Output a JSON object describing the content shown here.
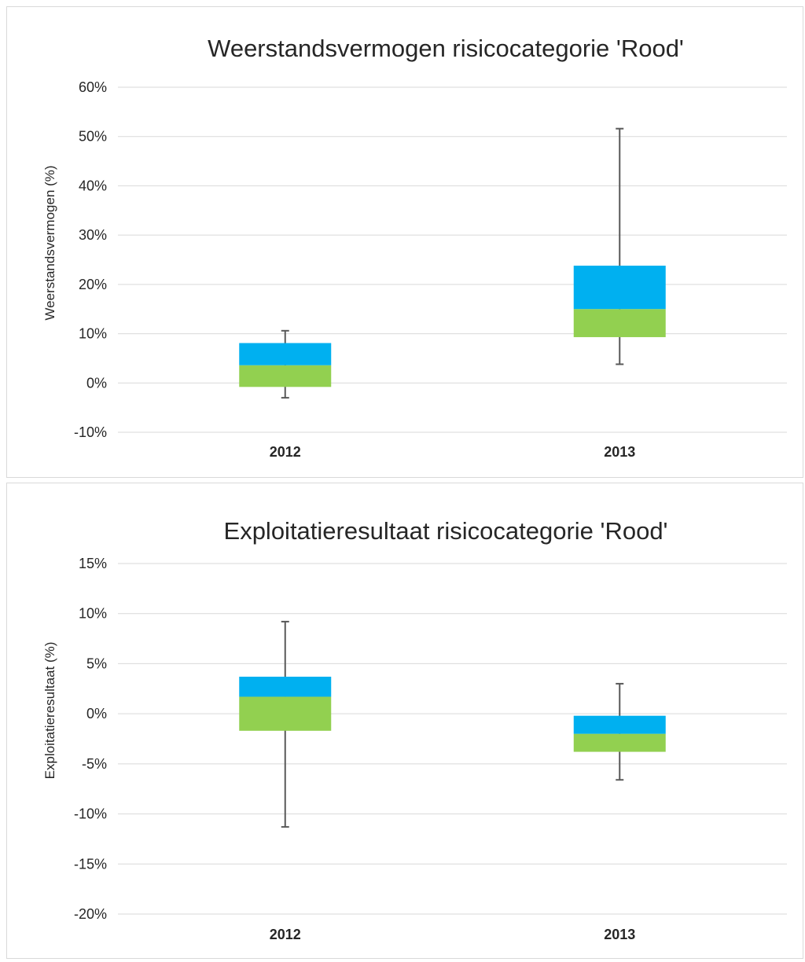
{
  "colors": {
    "upper_box": "#00b0f0",
    "lower_box": "#92d050",
    "whisker": "#595959",
    "grid": "#d9d9d9"
  },
  "chart_data": [
    {
      "type": "box",
      "title": "Weerstandsvermogen risicocategorie 'Rood'",
      "ylabel": "Weerstandsvermogen (%)",
      "xlabel": "",
      "categories": [
        "2012",
        "2013"
      ],
      "y_ticks": [
        "-10%",
        "0%",
        "10%",
        "20%",
        "30%",
        "40%",
        "50%",
        "60%"
      ],
      "ylim": [
        -10,
        60
      ],
      "unit": "%",
      "grid": true,
      "legend": "none",
      "boxes": [
        {
          "category": "2012",
          "min": -3,
          "q1": -0.8,
          "median": 3.6,
          "q3": 8.1,
          "max": 10.6
        },
        {
          "category": "2013",
          "min": 3.8,
          "q1": 9.3,
          "median": 15.0,
          "q3": 23.8,
          "max": 51.6
        }
      ]
    },
    {
      "type": "box",
      "title": "Exploitatieresultaat risicocategorie 'Rood'",
      "ylabel": "Exploitatieresultaat (%)",
      "xlabel": "",
      "categories": [
        "2012",
        "2013"
      ],
      "y_ticks": [
        "-20%",
        "-15%",
        "-10%",
        "-5%",
        "0%",
        "5%",
        "10%",
        "15%"
      ],
      "ylim": [
        -20,
        15
      ],
      "unit": "%",
      "grid": true,
      "legend": "none",
      "boxes": [
        {
          "category": "2012",
          "min": -11.3,
          "q1": -1.7,
          "median": 1.7,
          "q3": 3.7,
          "max": 9.2
        },
        {
          "category": "2013",
          "min": -6.6,
          "q1": -3.8,
          "median": -2.0,
          "q3": -0.2,
          "max": 3.0
        }
      ]
    }
  ]
}
